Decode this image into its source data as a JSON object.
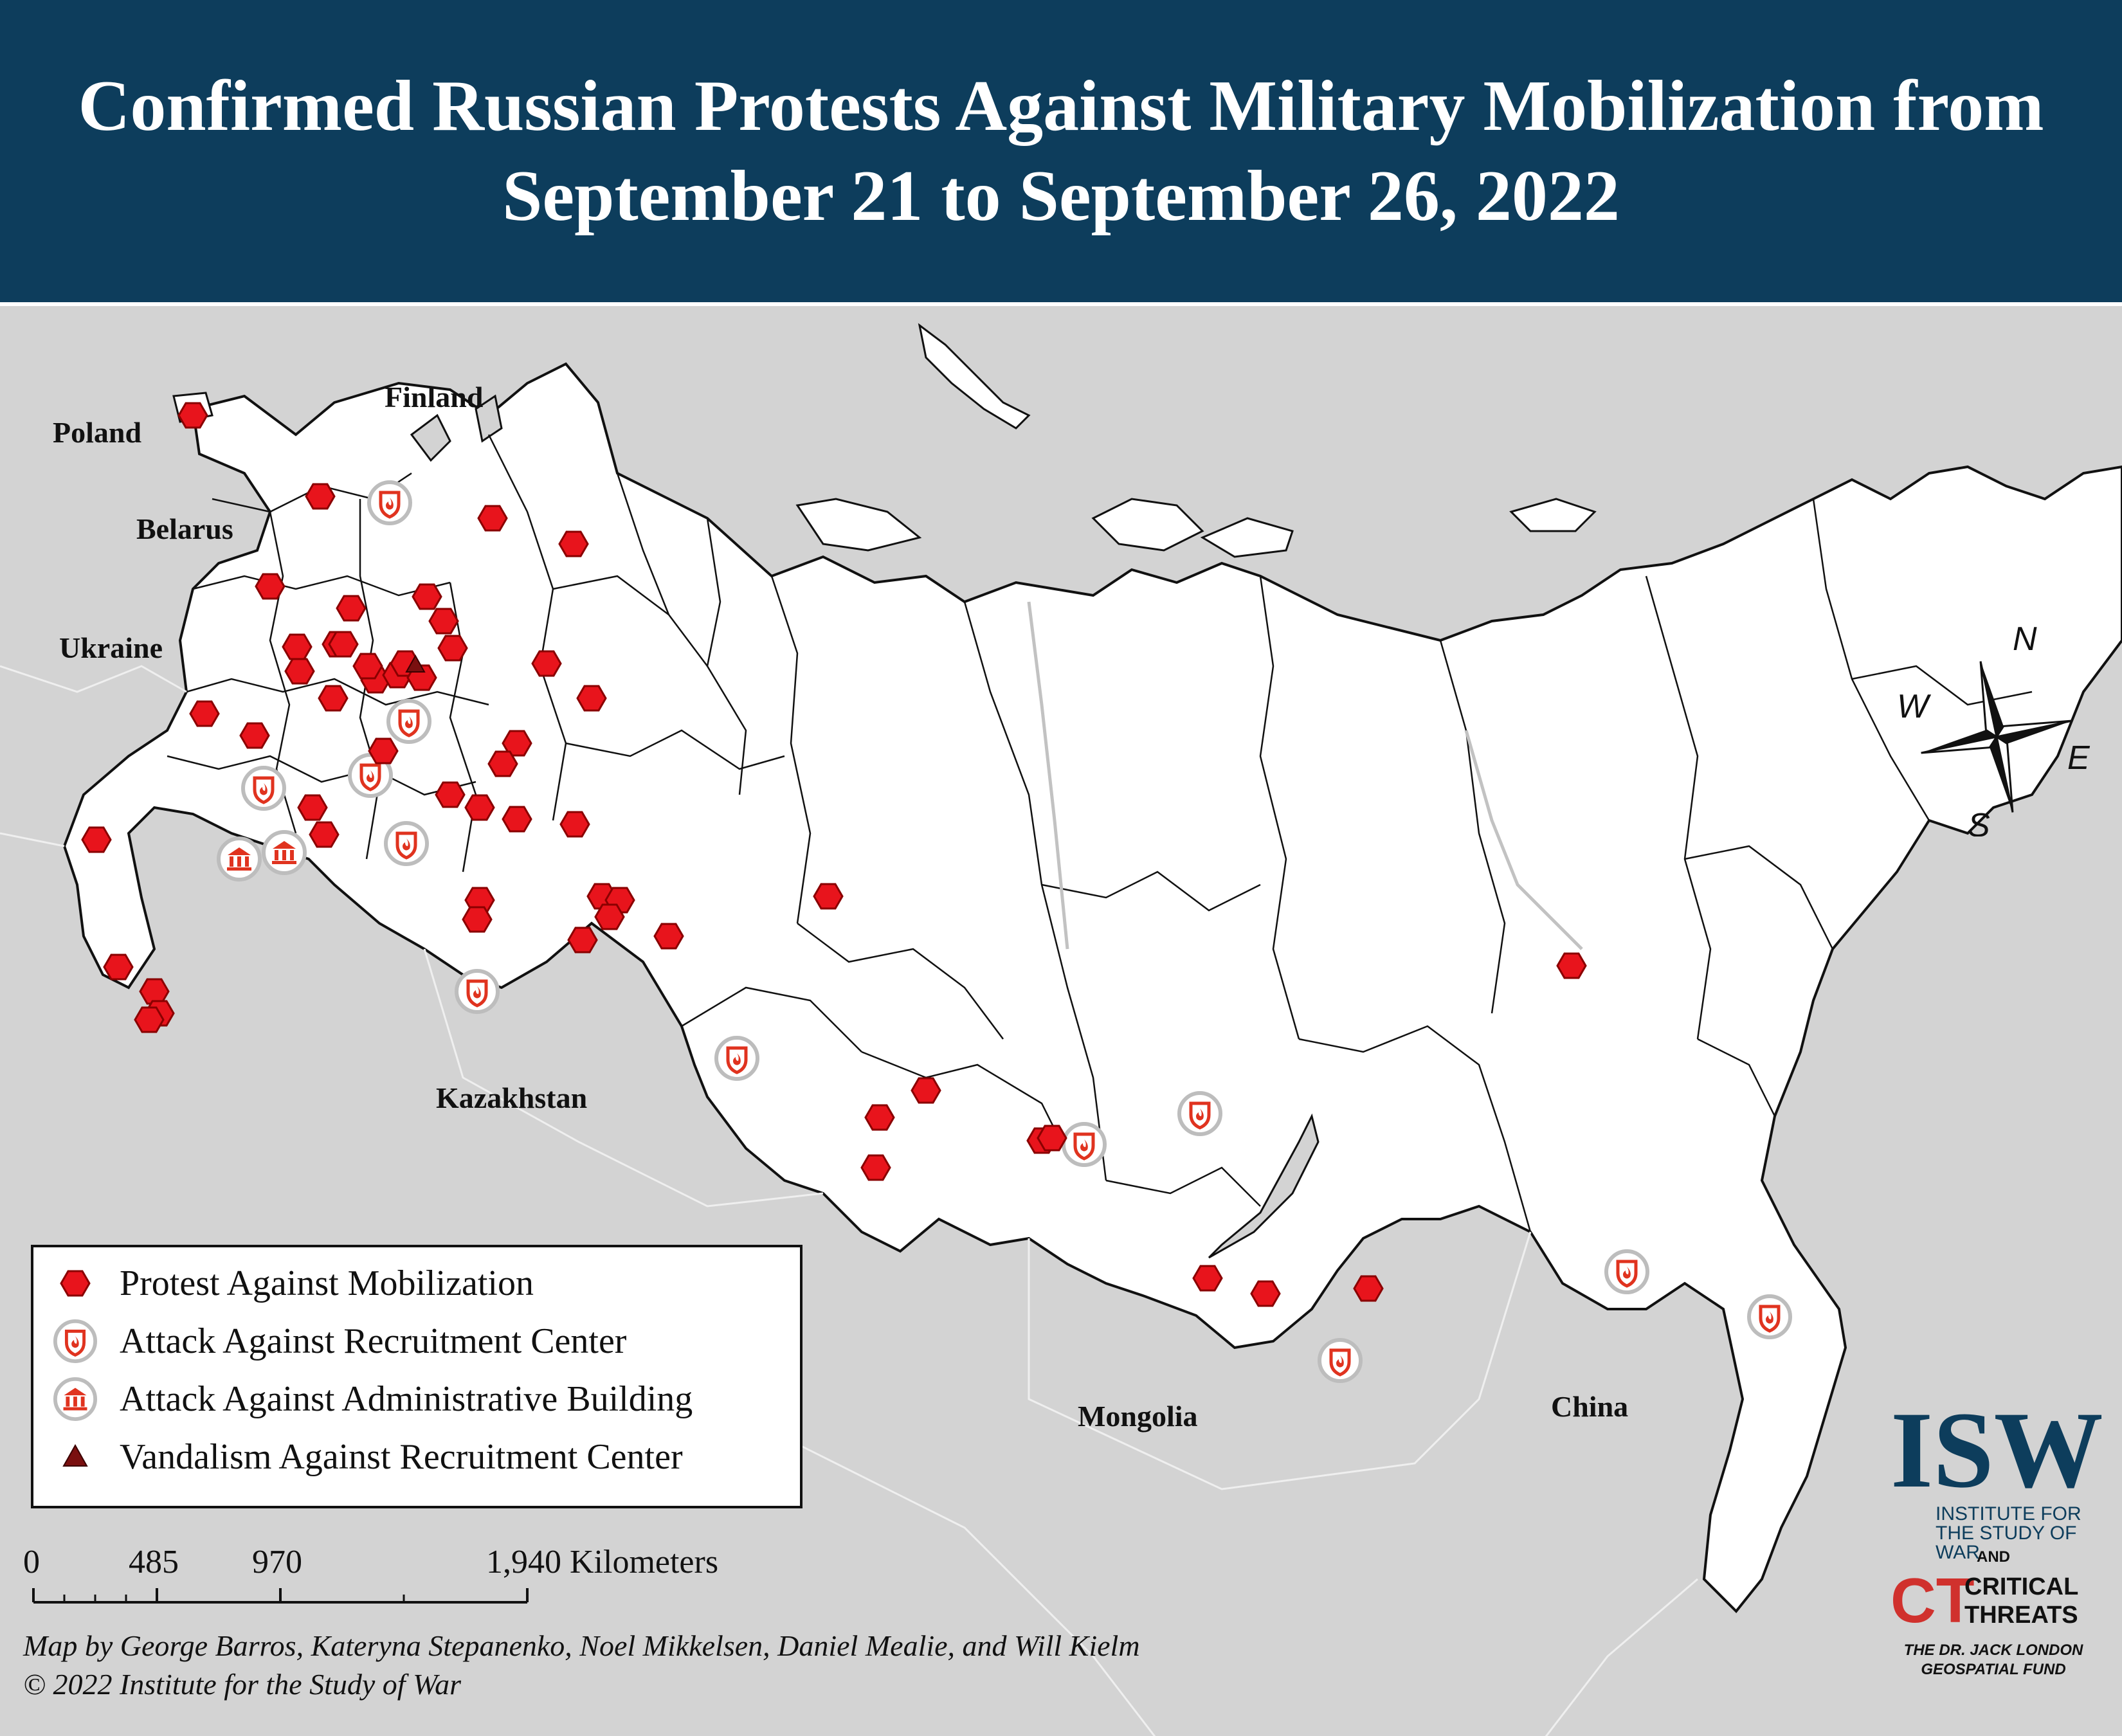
{
  "title": "Confirmed Russian Protests Against Military Mobilization from September 21 to September 26, 2022",
  "colors": {
    "header": "#0d3d5c",
    "russia_fill": "#ffffff",
    "background_fill": "#d3d3d3",
    "protest": "#e8141c",
    "attack_ring": "#c8c8c8",
    "vandalism": "#7a1010"
  },
  "countries": {
    "poland": "Poland",
    "finland": "Finland",
    "belarus": "Belarus",
    "ukraine": "Ukraine",
    "kazakhstan": "Kazakhstan",
    "mongolia": "Mongolia",
    "china": "China"
  },
  "legend": {
    "protest": "Protest Against Mobilization",
    "recruitment_attack": "Attack Against Recruitment Center",
    "admin_attack": "Attack Against Administrative Building",
    "vandalism": "Vandalism Against Recruitment Center"
  },
  "scale": {
    "t0": "0",
    "t1": "485",
    "t2": "970",
    "t3": "1,940 Kilometers"
  },
  "compass": {
    "n": "N",
    "s": "S",
    "e": "E",
    "w": "W"
  },
  "credits": {
    "line1": "Map by George Barros, Kateryna Stepanenko, Noel Mikkelsen, Daniel Mealie, and Will Kielm",
    "line2": "© 2022 Institute for the Study of War"
  },
  "logos": {
    "isw": "ISW",
    "isw_sub": "INSTITUTE FOR THE STUDY OF WAR",
    "and": "AND",
    "ct_mark": "CT",
    "ct_line1": "CRITICAL",
    "ct_line2": "THREATS",
    "fund_line1": "THE DR. JACK LONDON",
    "fund_line2": "GEOSPATIAL FUND"
  },
  "markers": {
    "protests": 54,
    "recruitment_attacks": 13,
    "admin_attacks": 2,
    "vandalism": 1
  }
}
